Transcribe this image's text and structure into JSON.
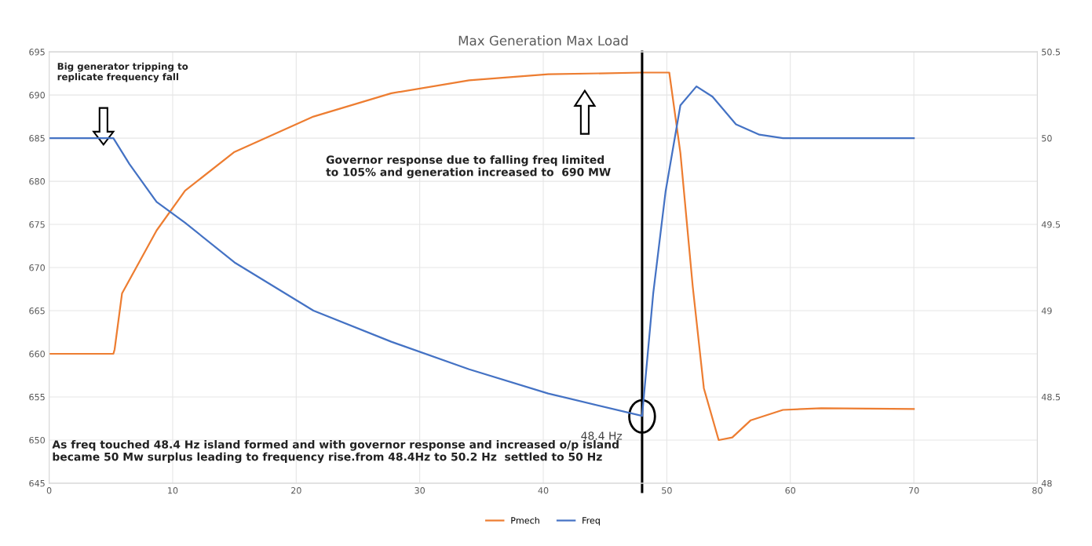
{
  "chart_data": {
    "type": "line",
    "title": "Max Generation Max Load",
    "xlim": [
      0,
      80
    ],
    "xticks": [
      0,
      10,
      20,
      30,
      40,
      50,
      60,
      70,
      80
    ],
    "ylim": [
      645,
      695
    ],
    "yticks": [
      645,
      650,
      655,
      660,
      665,
      670,
      675,
      680,
      685,
      690,
      695
    ],
    "y2lim": [
      48,
      50.5
    ],
    "y2ticks": [
      48,
      48.5,
      49,
      49.5,
      50,
      50.5
    ],
    "grid": true,
    "legend": "bottom",
    "marker": "none",
    "line_style": "solid",
    "series": [
      {
        "name": "Pmech",
        "color": "#ed7d31",
        "x": [
          0,
          5.2,
          5.3,
          5.9,
          8.7,
          11,
          15,
          21.4,
          27.7,
          34,
          40.4,
          48,
          50.2,
          51.1,
          52.1,
          53,
          54.2,
          55.3,
          56.8,
          59.4,
          62.5,
          70
        ],
        "values": [
          660,
          660,
          660.5,
          667,
          674.3,
          678.9,
          683.4,
          687.5,
          690.2,
          691.7,
          692.4,
          692.6,
          692.6,
          683.3,
          667.8,
          656,
          650,
          650.3,
          652.3,
          653.5,
          653.7,
          653.6
        ]
      },
      {
        "name": "Freq",
        "color": "#4472c4",
        "axis": "y2",
        "x": [
          0,
          5.2,
          6.5,
          8.7,
          11,
          15,
          21.4,
          27.7,
          34,
          40.4,
          48,
          48.9,
          49.9,
          51.1,
          52.4,
          53.7,
          55.6,
          57.5,
          59.4,
          70
        ],
        "values": [
          50,
          50,
          49.85,
          49.63,
          49.51,
          49.28,
          49,
          48.82,
          48.66,
          48.52,
          48.39,
          49.1,
          49.69,
          50.19,
          50.3,
          50.24,
          50.08,
          50.02,
          50,
          50
        ]
      }
    ],
    "ref_lines": [
      {
        "axis": "x",
        "value": 48,
        "color": "#000000"
      }
    ],
    "annotations": [
      "Big generator tripping to\nreplicate frequency fall",
      "Governor response due to falling freq limited\nto 105% and generation increased to  690 MW",
      "48.4 Hz",
      "As freq touched 48.4 Hz island formed and with governor response and increased o/p island\nbecame 50 Mw surplus leading to frequency rise.from 48.4Hz to 50.2 Hz  settled to 50 Hz"
    ]
  }
}
